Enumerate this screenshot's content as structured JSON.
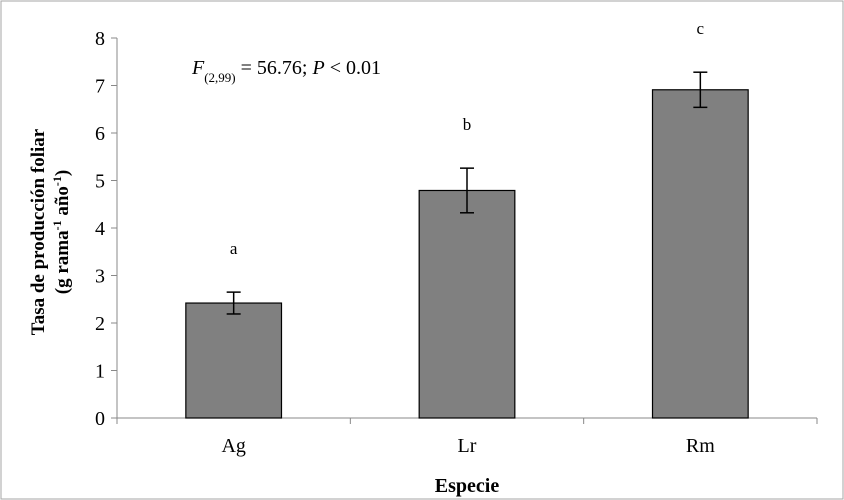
{
  "chart_data": {
    "type": "bar",
    "categories": [
      "Ag",
      "Lr",
      "Rm"
    ],
    "values": [
      2.42,
      4.79,
      6.91
    ],
    "errors": [
      0.23,
      0.47,
      0.37
    ],
    "significance_letters": [
      "a",
      "b",
      "c"
    ],
    "ylim": [
      0,
      8
    ],
    "yticks": [
      "0",
      "1",
      "2",
      "3",
      "4",
      "5",
      "6",
      "7",
      "8"
    ],
    "xlabel": "Especie",
    "ylabel_line1": "Tasa de producción foliar",
    "ylabel_line2": {
      "p1": "(g rama",
      "sup1": "-1",
      "p2": " año",
      "sup2": "-1",
      "p3": ")"
    },
    "annotation": {
      "f": "F",
      "sub": "(2,99)",
      "eq": " = 56.76; ",
      "p": "P",
      "rest": " < 0.01"
    },
    "grid": false,
    "legend": "none",
    "bar_color": "#808080",
    "bar_stroke": "#000000"
  }
}
